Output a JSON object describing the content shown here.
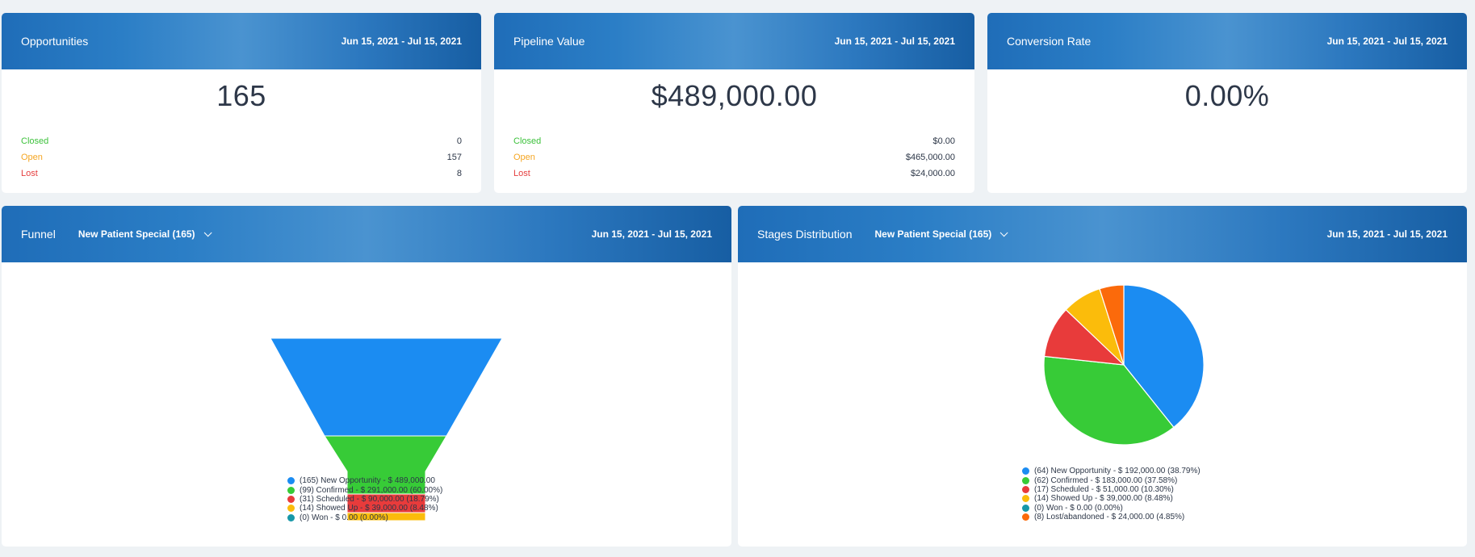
{
  "cards": {
    "opportunities": {
      "title": "Opportunities",
      "date_range": "Jun 15, 2021 - Jul 15, 2021",
      "total": "165",
      "rows": [
        {
          "label": "Closed",
          "value": "0"
        },
        {
          "label": "Open",
          "value": "157"
        },
        {
          "label": "Lost",
          "value": "8"
        }
      ]
    },
    "pipeline": {
      "title": "Pipeline Value",
      "date_range": "Jun 15, 2021 - Jul 15, 2021",
      "total": "$489,000.00",
      "rows": [
        {
          "label": "Closed",
          "value": "$0.00"
        },
        {
          "label": "Open",
          "value": "$465,000.00"
        },
        {
          "label": "Lost",
          "value": "$24,000.00"
        }
      ]
    },
    "conversion": {
      "title": "Conversion Rate",
      "date_range": "Jun 15, 2021 - Jul 15, 2021",
      "total": "0.00%"
    },
    "funnel": {
      "title": "Funnel",
      "pipeline_select": "New Patient Special (165)",
      "date_range": "Jun 15, 2021 - Jul 15, 2021"
    },
    "stages": {
      "title": "Stages Distribution",
      "pipeline_select": "New Patient Special (165)",
      "date_range": "Jun 15, 2021 - Jul 15, 2021"
    }
  },
  "colors": {
    "blue": "#1b8cf2",
    "green": "#37cb37",
    "red": "#e83b3b",
    "yellow": "#fbbc0b",
    "teal": "#1798a8",
    "orange": "#fb6a0b"
  },
  "chart_data": [
    {
      "type": "funnel",
      "stages": [
        "New Opportunity",
        "Confirmed",
        "Scheduled",
        "Showed Up",
        "Won"
      ],
      "counts": [
        165,
        99,
        31,
        14,
        0
      ],
      "values": [
        489000,
        291000,
        90000,
        39000,
        0
      ],
      "percents": [
        null,
        60.0,
        18.79,
        8.48,
        0.0
      ],
      "legend": [
        "(165) New Opportunity - $ 489,000.00",
        "(99) Confirmed - $ 291,000.00 (60.00%)",
        "(31) Scheduled - $ 90,000.00 (18.79%)",
        "(14) Showed Up - $ 39,000.00 (8.48%)",
        "(0) Won - $ 0.00 (0.00%)"
      ]
    },
    {
      "type": "pie",
      "categories": [
        "New Opportunity",
        "Confirmed",
        "Scheduled",
        "Showed Up",
        "Won",
        "Lost/abandoned"
      ],
      "counts": [
        64,
        62,
        17,
        14,
        0,
        8
      ],
      "values": [
        192000,
        183000,
        51000,
        39000,
        0,
        24000
      ],
      "percents": [
        38.79,
        37.58,
        10.3,
        8.48,
        0.0,
        4.85
      ],
      "legend": [
        "(64) New Opportunity - $ 192,000.00 (38.79%)",
        "(62) Confirmed - $ 183,000.00 (37.58%)",
        "(17) Scheduled - $ 51,000.00 (10.30%)",
        "(14) Showed Up - $ 39,000.00 (8.48%)",
        "(0) Won - $ 0.00 (0.00%)",
        "(8) Lost/abandoned - $ 24,000.00 (4.85%)"
      ]
    }
  ]
}
